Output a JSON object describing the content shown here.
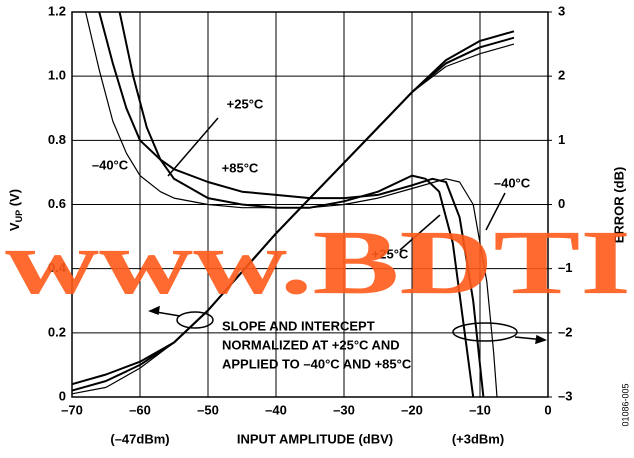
{
  "chart_data": {
    "type": "line",
    "x_label": "INPUT AMPLITUDE (dBV)",
    "x_sublabels": [
      "(–47dBm)",
      "(+3dBm)"
    ],
    "y_label": {
      "main": "V",
      "sub": "UP",
      "unit": " (V)"
    },
    "y2_label": "ERROR (dB)",
    "xlim": [
      -70,
      0
    ],
    "xticks": [
      {
        "value": -70,
        "label": "–70"
      },
      {
        "value": -60,
        "label": "–60"
      },
      {
        "value": -50,
        "label": "–50"
      },
      {
        "value": -40,
        "label": "–40"
      },
      {
        "value": -30,
        "label": "–30"
      },
      {
        "value": -20,
        "label": "–20"
      },
      {
        "value": -10,
        "label": "–10"
      },
      0
    ],
    "ylim": [
      0,
      1.2
    ],
    "yticks": [
      0,
      0.2,
      0.4,
      0.6,
      0.8,
      {
        "value": 1,
        "label": "1.0"
      },
      1.2
    ],
    "y2lim": [
      -3,
      3
    ],
    "y2ticks": [
      {
        "value": -3,
        "label": "–3"
      },
      {
        "value": -2,
        "label": "–2"
      },
      {
        "value": -1,
        "label": "–1"
      },
      0,
      1,
      2,
      3
    ],
    "grid": true,
    "series": [
      {
        "color": "#000",
        "x": [
          -70,
          -65,
          -60,
          -55,
          -50,
          -45,
          -40,
          -35,
          -30,
          -25,
          -20,
          -15,
          -10,
          -5
        ],
        "values": [
          0.04,
          0.07,
          0.11,
          0.17,
          0.27,
          0.39,
          0.51,
          0.62,
          0.73,
          0.84,
          0.95,
          1.04,
          1.09,
          1.12
        ]
      },
      {
        "color": "#000",
        "x": [
          -70,
          -65,
          -60,
          -55,
          -50,
          -45,
          -40,
          -35,
          -30,
          -25,
          -20,
          -15,
          -10,
          -5
        ],
        "values": [
          0.01,
          0.03,
          0.09,
          0.17,
          0.27,
          0.39,
          0.51,
          0.62,
          0.73,
          0.84,
          0.95,
          1.03,
          1.07,
          1.1
        ]
      },
      {
        "color": "#000",
        "x": [
          -70,
          -65,
          -60,
          -55,
          -50,
          -45,
          -40,
          -35,
          -30,
          -25,
          -20,
          -15,
          -10,
          -5
        ],
        "values": [
          0.02,
          0.05,
          0.1,
          0.17,
          0.27,
          0.39,
          0.51,
          0.62,
          0.73,
          0.84,
          0.95,
          1.05,
          1.11,
          1.14
        ]
      },
      {
        "color": "#000",
        "axis": "y2",
        "x": [
          -66,
          -64,
          -62,
          -60,
          -57,
          -55,
          -50,
          -45,
          -40,
          -35,
          -30,
          -25,
          -20,
          -17,
          -15,
          -13,
          -11,
          -9.5
        ],
        "values": [
          3,
          2.2,
          1.5,
          1.0,
          0.7,
          0.55,
          0.35,
          0.2,
          0.15,
          0.1,
          0.1,
          0.15,
          0.3,
          0.4,
          0.35,
          -0.2,
          -1.5,
          -3
        ]
      },
      {
        "color": "#000",
        "axis": "y2",
        "x": [
          -68,
          -66,
          -64,
          -62,
          -60,
          -57,
          -55,
          -50,
          -45,
          -40,
          -35,
          -30,
          -25,
          -20,
          -15,
          -13,
          -11,
          -9,
          -8,
          -7.5
        ],
        "values": [
          3,
          2.1,
          1.3,
          0.8,
          0.45,
          0.2,
          0.1,
          0.0,
          -0.05,
          -0.05,
          -0.05,
          0,
          0.1,
          0.25,
          0.4,
          0.35,
          0,
          -1.2,
          -2.3,
          -3
        ]
      },
      {
        "color": "#000",
        "axis": "y2",
        "x": [
          -63,
          -61,
          -59,
          -57,
          -55,
          -50,
          -45,
          -40,
          -35,
          -30,
          -25,
          -20,
          -18,
          -16,
          -14,
          -12.5,
          -11
        ],
        "values": [
          3,
          2.0,
          1.2,
          0.7,
          0.4,
          0.1,
          0.0,
          -0.05,
          -0.05,
          0.05,
          0.2,
          0.45,
          0.4,
          0.2,
          -0.6,
          -1.8,
          -3
        ]
      }
    ],
    "annotations": [
      "+25°C",
      "–40°C",
      "+85°C",
      "–40°C",
      "+25°C",
      "SLOPE AND INTERCEPT",
      "NORMALIZED AT +25°C AND",
      "APPLIED TO –40°C AND +85°C",
      "www.BDTI",
      "01086-005"
    ]
  }
}
